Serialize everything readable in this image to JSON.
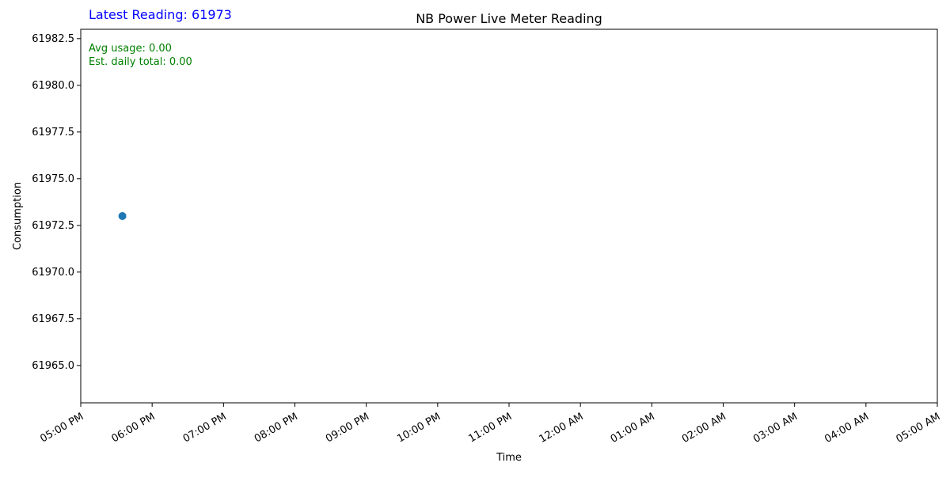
{
  "chart_data": {
    "type": "scatter",
    "title": "NB Power Live Meter Reading",
    "xlabel": "Time",
    "ylabel": "Consumption",
    "latest_reading_label": "Latest Reading: 61973",
    "annotation_lines": [
      "Avg usage: 0.00",
      "Est. daily total: 0.00"
    ],
    "x_ticks": [
      "05:00 PM",
      "06:00 PM",
      "07:00 PM",
      "08:00 PM",
      "09:00 PM",
      "10:00 PM",
      "11:00 PM",
      "12:00 AM",
      "01:00 AM",
      "02:00 AM",
      "03:00 AM",
      "04:00 AM",
      "05:00 AM"
    ],
    "y_ticks": [
      "61965.0",
      "61967.5",
      "61970.0",
      "61972.5",
      "61975.0",
      "61977.5",
      "61980.0",
      "61982.5"
    ],
    "y_tick_values": [
      61965.0,
      61967.5,
      61970.0,
      61972.5,
      61975.0,
      61977.5,
      61980.0,
      61982.5
    ],
    "ylim": [
      61963.0,
      61983.0
    ],
    "points": [
      {
        "time": "05:35 PM",
        "value": 61973
      }
    ],
    "grid": false,
    "colors": {
      "point": "#1f77b4",
      "latest": "#0000ff",
      "annotation": "#008000",
      "text": "#000000",
      "axis": "#000000"
    }
  }
}
